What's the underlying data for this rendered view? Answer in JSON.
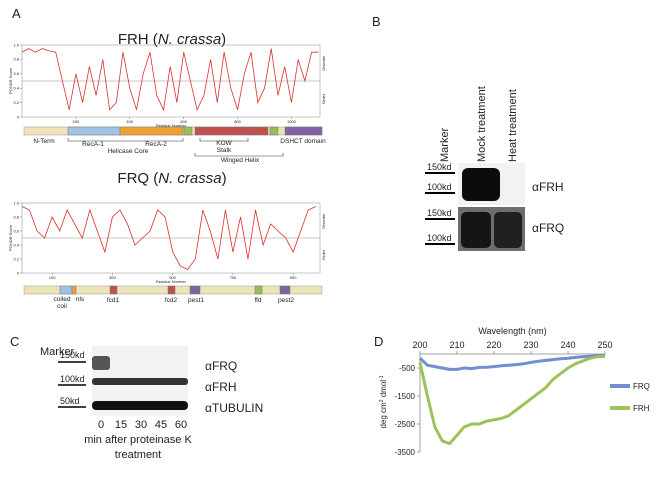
{
  "panel_labels": [
    "A",
    "B",
    "C",
    "D"
  ],
  "frh_plot": {
    "type": "line",
    "title_parts": [
      "FRH (",
      "N. crassa",
      ")"
    ],
    "y_label": "PONDR Score",
    "x_label": "Residue Number",
    "order_label": "Order",
    "disorder_label": "Disorder",
    "color": "#d9302c",
    "x": [
      0,
      25,
      50,
      75,
      100,
      125,
      150,
      175,
      200,
      225,
      250,
      275,
      300,
      325,
      350,
      375,
      400,
      425,
      450,
      475,
      500,
      525,
      550,
      575,
      600,
      625,
      650,
      675,
      700,
      725,
      750,
      775,
      800,
      825,
      850,
      875,
      900,
      925,
      950,
      975,
      1000,
      1025,
      1050,
      1075,
      1100
    ],
    "values": [
      0.9,
      0.95,
      0.9,
      0.95,
      0.92,
      0.9,
      0.5,
      0.1,
      0.6,
      0.2,
      0.7,
      0.3,
      0.8,
      0.1,
      0.2,
      0.9,
      0.4,
      0.1,
      0.6,
      0.9,
      0.3,
      0.1,
      0.7,
      0.2,
      0.9,
      0.5,
      0.1,
      0.3,
      0.8,
      0.2,
      0.9,
      0.4,
      0.1,
      0.6,
      0.9,
      0.2,
      0.4,
      0.95,
      0.3,
      0.7,
      0.2,
      0.8,
      0.5,
      0.9,
      0.9
    ],
    "xlim": [
      0,
      1106
    ],
    "xticks": [
      200,
      400,
      600,
      800,
      1000
    ],
    "ylim": [
      0,
      1
    ],
    "yticks": [
      0,
      0.2,
      0.4,
      0.6,
      0.8,
      {
        "value": 1,
        "label": "1.0"
      }
    ],
    "threshold": 0.5
  },
  "frh_domains": {
    "n_term": "N-Term",
    "reca1": "RecA-1",
    "reca2": "RecA-2",
    "helicase_core": "Helicase Core",
    "kow": "KOW",
    "stalk": "Stalk",
    "winged_helix": "Winged Helix",
    "dshct": "DSHCT domain"
  },
  "frq_plot": {
    "type": "line",
    "title_parts": [
      "FRQ (",
      "N. crassa",
      ")"
    ],
    "y_label": "PONDR Score",
    "x_label": "Residue Number",
    "order_label": "Order",
    "disorder_label": "Disorder",
    "color": "#d9302c",
    "x": [
      0,
      25,
      50,
      75,
      100,
      125,
      150,
      175,
      200,
      225,
      250,
      275,
      300,
      325,
      350,
      375,
      400,
      425,
      450,
      475,
      500,
      525,
      550,
      575,
      600,
      625,
      650,
      675,
      700,
      725,
      750,
      775,
      800,
      825,
      850,
      875,
      900,
      925,
      950,
      975
    ],
    "values": [
      0.95,
      0.9,
      0.6,
      0.5,
      0.8,
      0.6,
      0.9,
      0.7,
      0.5,
      0.9,
      0.6,
      0.3,
      0.8,
      0.9,
      0.7,
      0.4,
      0.5,
      0.6,
      0.9,
      0.8,
      0.3,
      0.1,
      0.05,
      0.2,
      0.9,
      0.6,
      0.2,
      0.9,
      0.3,
      0.8,
      0.2,
      0.9,
      0.4,
      0.7,
      0.6,
      0.5,
      0.3,
      0.6,
      0.9,
      0.95
    ],
    "xlim": [
      0,
      989
    ],
    "xticks": [
      100,
      300,
      500,
      700,
      900
    ],
    "ylim": [
      0,
      1
    ],
    "yticks": [
      0,
      0.2,
      0.4,
      0.6,
      0.8,
      {
        "value": 1,
        "label": "1.0"
      }
    ],
    "threshold": 0.5
  },
  "frq_domains": {
    "coiled": "coiled",
    "coil": "coil",
    "nls": "nls",
    "fcd1": "fcd1",
    "fcd2": "fcd2",
    "pest1": "pest1",
    "ffd": "ffd",
    "pest2": "pest2"
  },
  "blot_b": {
    "lanes": [
      "Marker",
      "Mock treatment",
      "Heat treatment"
    ],
    "top_markers": [
      "150kd",
      "100kd"
    ],
    "top_antibody": "αFRH",
    "bottom_markers": [
      "150kd",
      "100kd"
    ],
    "bottom_antibody": "αFRQ"
  },
  "blot_c": {
    "marker": "Marker",
    "markers": [
      "150kd",
      "100kd",
      "50kd"
    ],
    "antibodies": [
      "αFRQ",
      "αFRH",
      "αTUBULIN"
    ],
    "lanes": [
      "0",
      "15",
      "30",
      "45",
      "60"
    ],
    "caption_lines": [
      "min after proteinase K",
      "treatment"
    ]
  },
  "cd_chart": {
    "type": "line",
    "x_label": "Wavelength (nm)",
    "y_label_parts": [
      "deg cm",
      "2",
      " dmol",
      "-1"
    ],
    "x": [
      200,
      202,
      204,
      206,
      208,
      210,
      212,
      214,
      216,
      218,
      220,
      222,
      224,
      226,
      228,
      230,
      232,
      234,
      236,
      238,
      240,
      242,
      244,
      246,
      248,
      250
    ],
    "xlim": [
      200,
      250
    ],
    "xticks": [
      200,
      210,
      220,
      230,
      240,
      250
    ],
    "ylim": [
      -3500,
      0
    ],
    "yticks": [
      -500,
      -1500,
      -2500,
      -3500
    ],
    "series": [
      {
        "name": "FRQ",
        "color": "#6f8fd0",
        "values": [
          -150,
          -400,
          -450,
          -500,
          -550,
          -550,
          -500,
          -520,
          -480,
          -470,
          -450,
          -420,
          -400,
          -380,
          -350,
          -300,
          -260,
          -230,
          -200,
          -170,
          -150,
          -120,
          -100,
          -80,
          -60,
          -50
        ]
      },
      {
        "name": "FRH",
        "color": "#9cc25a",
        "values": [
          -300,
          -1500,
          -2600,
          -3100,
          -3200,
          -2900,
          -2600,
          -2500,
          -2500,
          -2400,
          -2350,
          -2300,
          -2200,
          -2000,
          -1800,
          -1600,
          -1400,
          -1200,
          -900,
          -700,
          -500,
          -350,
          -250,
          -150,
          -100,
          -80
        ]
      }
    ]
  }
}
